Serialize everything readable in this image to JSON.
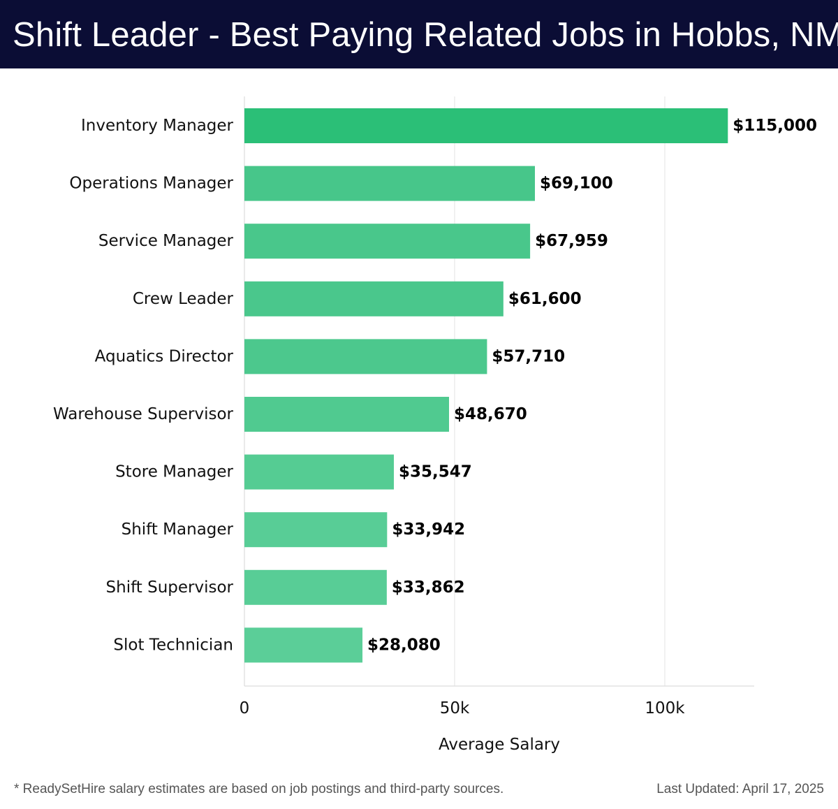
{
  "header": {
    "title": "Shift Leader - Best Paying Related Jobs in Hobbs, NM"
  },
  "chart_data": {
    "type": "bar",
    "orientation": "horizontal",
    "title": "Shift Leader - Best Paying Related Jobs in Hobbs, NM",
    "xlabel": "Average Salary",
    "ylabel": "",
    "xlim": [
      0,
      121000
    ],
    "xticks": [
      0,
      50000,
      100000
    ],
    "xtick_labels": [
      "0",
      "50k",
      "100k"
    ],
    "grid": true,
    "categories": [
      "Inventory Manager",
      "Operations Manager",
      "Service Manager",
      "Crew Leader",
      "Aquatics Director",
      "Warehouse Supervisor",
      "Store Manager",
      "Shift Manager",
      "Shift Supervisor",
      "Slot Technician"
    ],
    "values": [
      115000,
      69100,
      67959,
      61600,
      57710,
      48670,
      35547,
      33942,
      33862,
      28080
    ],
    "value_labels": [
      "$115,000",
      "$69,100",
      "$67,959",
      "$61,600",
      "$57,710",
      "$48,670",
      "$35,547",
      "$33,942",
      "$33,862",
      "$28,080"
    ],
    "colors": [
      "#2bbf77",
      "#47c68a",
      "#49c78b",
      "#4ac78c",
      "#4cc88d",
      "#50ca90",
      "#55cc93",
      "#58cd96",
      "#58cd96",
      "#5bce98"
    ]
  },
  "footer": {
    "note": "* ReadySetHire salary estimates are based on job postings and third-party sources.",
    "updated": "Last Updated: April 17, 2025"
  }
}
